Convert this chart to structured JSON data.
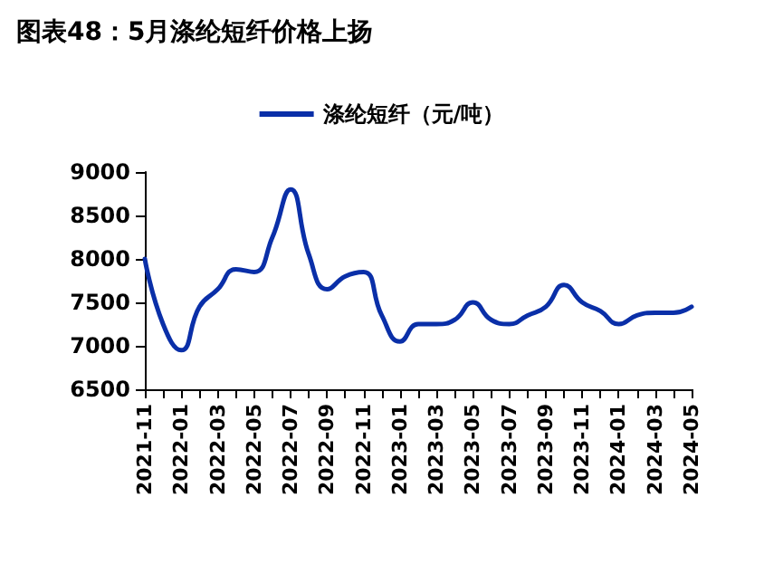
{
  "chart_data": {
    "type": "line",
    "title": "图表48：5月涤纶短纤价格上扬",
    "categories": [
      "2021-11",
      null,
      "2022-01",
      null,
      "2022-03",
      null,
      "2022-05",
      null,
      "2022-07",
      null,
      "2022-09",
      null,
      "2022-11",
      null,
      "2023-01",
      null,
      "2023-03",
      null,
      "2023-05",
      null,
      "2023-07",
      null,
      "2023-09",
      null,
      "2023-11",
      null,
      "2024-01",
      null,
      "2024-03",
      null,
      "2024-05"
    ],
    "series": [
      {
        "name": "涤纶短纤（元/吨）",
        "color": "#0a2fa8",
        "values": [
          8000,
          7250,
          6950,
          7450,
          7650,
          7880,
          7850,
          8250,
          8800,
          8050,
          7650,
          7800,
          7850,
          7350,
          7050,
          7250,
          7250,
          7300,
          7500,
          7300,
          7250,
          7350,
          7450,
          7700,
          7500,
          7400,
          7250,
          7350,
          7380,
          7380,
          7450
        ]
      }
    ],
    "ylim": [
      6500,
      9000
    ],
    "yticks": [
      6500,
      7000,
      7500,
      8000,
      8500,
      9000
    ],
    "grid": false,
    "legend": "top",
    "marker": "none",
    "line_style": "solid"
  }
}
